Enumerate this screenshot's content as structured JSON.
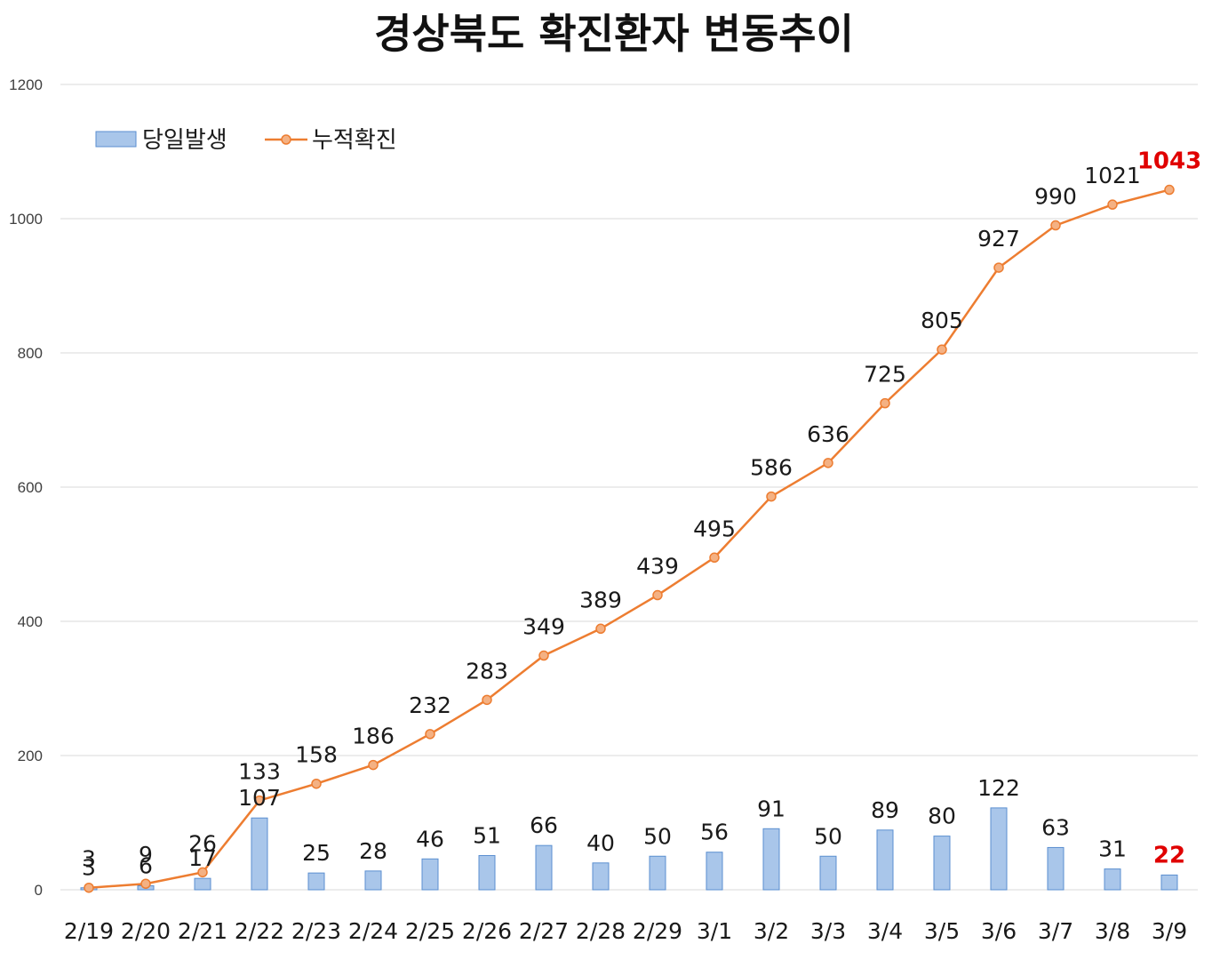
{
  "chart_data": {
    "type": "bar+line",
    "title": "경상북도 확진환자 변동추이",
    "categories": [
      "2/19",
      "2/20",
      "2/21",
      "2/22",
      "2/23",
      "2/24",
      "2/25",
      "2/26",
      "2/27",
      "2/28",
      "2/29",
      "3/1",
      "3/2",
      "3/3",
      "3/4",
      "3/5",
      "3/6",
      "3/7",
      "3/8",
      "3/9"
    ],
    "series": [
      {
        "name": "당일발생",
        "type": "bar",
        "values": [
          3,
          6,
          17,
          107,
          25,
          28,
          46,
          51,
          66,
          40,
          50,
          56,
          91,
          50,
          89,
          80,
          122,
          63,
          31,
          22
        ]
      },
      {
        "name": "누적확진",
        "type": "line",
        "values": [
          3,
          9,
          26,
          133,
          158,
          186,
          232,
          283,
          349,
          389,
          439,
          495,
          586,
          636,
          725,
          805,
          927,
          990,
          1021,
          1043
        ]
      }
    ],
    "y_ticks": [
      "0",
      "200",
      "400",
      "600",
      "800",
      "1000",
      "1200"
    ],
    "ylim": [
      0,
      1200
    ],
    "grid": true,
    "legend_position": "top-left",
    "highlight_last": true,
    "colors": {
      "bar_fill": "#a9c6ea",
      "bar_stroke": "#5b8fd0",
      "line": "#ed7d31",
      "marker_fill": "#f4b183",
      "grid": "#d9d9d9",
      "highlight": "#e00000"
    }
  }
}
